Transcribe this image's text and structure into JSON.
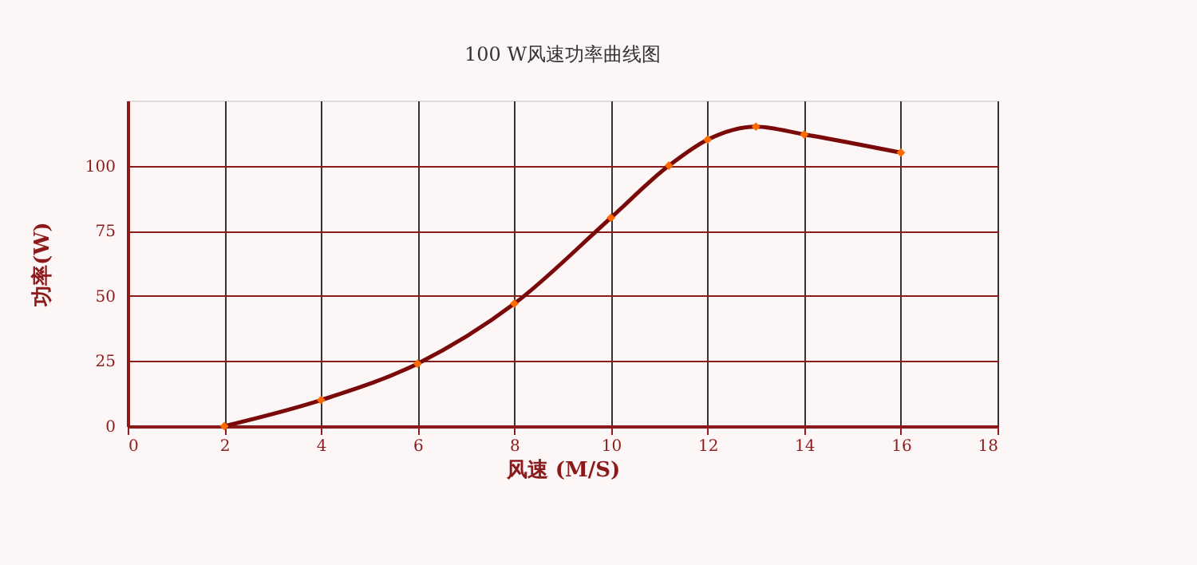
{
  "chart_data": {
    "type": "line",
    "title": "100 W风速功率曲线图",
    "xlabel": "风速 (M/S)",
    "ylabel": "功率(W)",
    "x": [
      2,
      4,
      6,
      8,
      10,
      11.2,
      12,
      13,
      14,
      16
    ],
    "series": [
      {
        "color": "#7a0a0a",
        "values": [
          0,
          10,
          24,
          47,
          80,
          100,
          110,
          115,
          112,
          105
        ]
      }
    ],
    "marker": "diamond",
    "xlim": [
      0,
      18
    ],
    "xticks": [
      0,
      2,
      4,
      6,
      8,
      10,
      12,
      14,
      16,
      18
    ],
    "ylim": [
      0,
      125
    ],
    "yticks": [
      0,
      25,
      50,
      75,
      100
    ],
    "grid": true,
    "line_style": "solid"
  }
}
